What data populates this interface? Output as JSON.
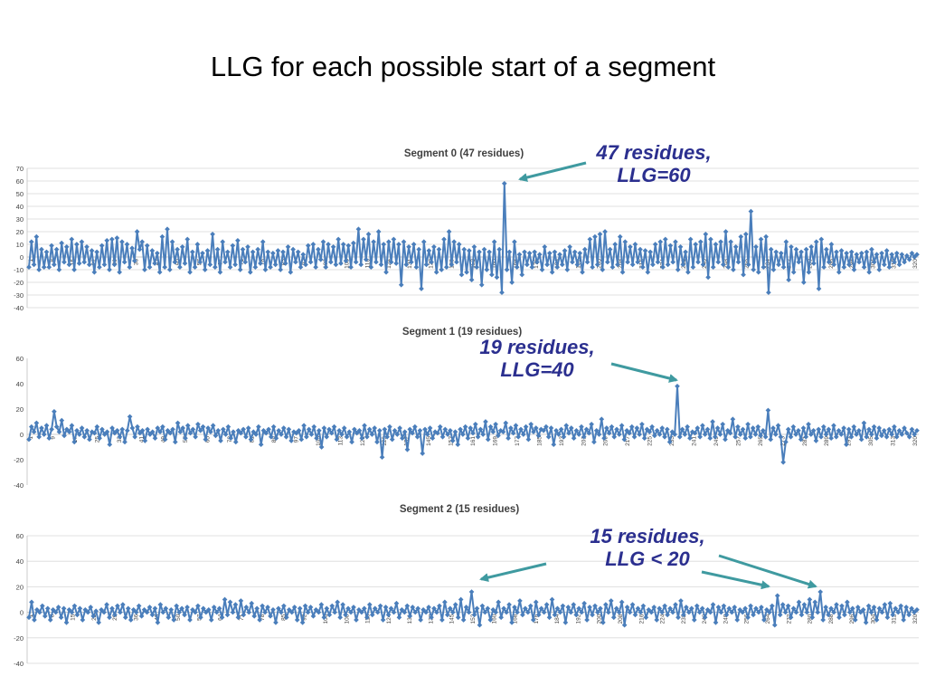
{
  "page_title": "LLG for each possible start of a segment",
  "colors": {
    "series": "#4a7ebb",
    "axis_text": "#444444",
    "grid": "#d9d9d9",
    "annotation_text": "#2b2f8f",
    "arrow": "#3f9aa0",
    "frame": "#9a9a9a"
  },
  "annotations": [
    {
      "line1": "47 residues,",
      "line2": "LLG=60"
    },
    {
      "line1": "19 residues,",
      "line2": "LLG=40"
    },
    {
      "line1": "15 residues,",
      "line2": "LLG < 20"
    }
  ],
  "chart_data": [
    {
      "type": "line",
      "title": "Segment 0 (47 residues)",
      "ylim": [
        -40,
        70
      ],
      "yticks": [
        -40,
        -30,
        -20,
        -10,
        0,
        10,
        20,
        30,
        40,
        50,
        60,
        70
      ],
      "grid": true,
      "xtick_labels": [
        "1",
        "8",
        "15",
        "22",
        "29",
        "36",
        "43",
        "50",
        "57",
        "64",
        "71",
        "78",
        "85",
        "92",
        "100",
        "108",
        "116",
        "124",
        "131",
        "138",
        "145",
        "152",
        "160",
        "168",
        "176",
        "184",
        "192",
        "200",
        "208",
        "216",
        "224",
        "232",
        "240",
        "248",
        "256",
        "264",
        "272",
        "280",
        "288",
        "296",
        "304",
        "312",
        "320"
      ],
      "peak": {
        "x": 171,
        "y": 60
      },
      "values": [
        -8,
        12,
        -6,
        16,
        -10,
        6,
        -8,
        4,
        -8,
        9,
        -6,
        6,
        -10,
        11,
        -4,
        8,
        -6,
        14,
        -10,
        10,
        -5,
        12,
        -4,
        8,
        -6,
        5,
        -12,
        4,
        -8,
        9,
        -6,
        13,
        -10,
        14,
        -6,
        15,
        -12,
        12,
        -4,
        10,
        -8,
        7,
        -3,
        20,
        6,
        12,
        -10,
        9,
        -8,
        5,
        -5,
        3,
        -12,
        16,
        -8,
        22,
        -10,
        12,
        -4,
        6,
        -8,
        8,
        -5,
        14,
        -12,
        4,
        -8,
        10,
        -4,
        3,
        -10,
        5,
        -6,
        18,
        -8,
        6,
        -12,
        12,
        -4,
        4,
        -8,
        9,
        -6,
        13,
        -10,
        6,
        -4,
        8,
        -12,
        4,
        -8,
        6,
        -5,
        12,
        -10,
        4,
        -8,
        3,
        -6,
        5,
        -10,
        4,
        -5,
        8,
        -12,
        6,
        -4,
        4,
        -8,
        2,
        -6,
        9,
        -4,
        10,
        -8,
        6,
        -2,
        12,
        -8,
        10,
        -4,
        8,
        -6,
        14,
        -5,
        10,
        -3,
        9,
        -8,
        11,
        -4,
        22,
        -6,
        14,
        -2,
        18,
        -8,
        12,
        -4,
        20,
        -6,
        10,
        -12,
        12,
        -4,
        14,
        -5,
        10,
        -22,
        12,
        -6,
        8,
        -4,
        10,
        -8,
        6,
        -25,
        12,
        -6,
        5,
        -4,
        8,
        -12,
        6,
        -10,
        14,
        -8,
        20,
        -6,
        12,
        -4,
        10,
        -14,
        6,
        -12,
        5,
        -18,
        8,
        -8,
        4,
        -22,
        6,
        -10,
        4,
        -14,
        12,
        -16,
        6,
        -28,
        58,
        -10,
        4,
        -20,
        12,
        -8,
        2,
        -14,
        4,
        -6,
        3,
        -8,
        4,
        -4,
        2,
        -10,
        8,
        -6,
        3,
        -12,
        4,
        -8,
        2,
        -6,
        5,
        -10,
        8,
        -4,
        4,
        -6,
        3,
        -12,
        6,
        -4,
        14,
        -8,
        16,
        -6,
        18,
        -10,
        20,
        -4,
        6,
        -8,
        10,
        -6,
        16,
        -12,
        12,
        -4,
        8,
        -6,
        10,
        -4,
        6,
        -8,
        5,
        -12,
        4,
        -6,
        10,
        -4,
        12,
        -8,
        14,
        -6,
        9,
        -4,
        12,
        -10,
        8,
        -6,
        4,
        -12,
        14,
        -8,
        10,
        -4,
        12,
        -6,
        18,
        -16,
        14,
        -8,
        10,
        -4,
        12,
        -6,
        20,
        -8,
        12,
        -10,
        8,
        -4,
        16,
        -14,
        18,
        -6,
        36,
        -10,
        8,
        -12,
        14,
        -8,
        16,
        -28,
        6,
        -10,
        4,
        -6,
        3,
        -8,
        12,
        -18,
        8,
        -12,
        6,
        -4,
        4,
        -20,
        6,
        -12,
        8,
        -5,
        12,
        -25,
        14,
        -8,
        6,
        -4,
        10,
        -6,
        4,
        -12,
        5,
        -8,
        3,
        -6,
        4,
        -10,
        2,
        -4,
        3,
        -8,
        4,
        -12,
        6,
        -4,
        2,
        -10,
        3,
        -6,
        5,
        -8,
        2,
        -4,
        3,
        -6,
        2,
        -4,
        1,
        -2,
        3,
        0,
        2
      ]
    },
    {
      "type": "line",
      "title": "Segment 1 (19 residues)",
      "ylim": [
        -40,
        60
      ],
      "yticks": [
        -40,
        -20,
        0,
        20,
        40,
        60
      ],
      "grid": false,
      "xtick_labels": [
        "1",
        "9",
        "17",
        "25",
        "33",
        "41",
        "49",
        "57",
        "65",
        "73",
        "81",
        "89",
        "97",
        "105",
        "113",
        "121",
        "129",
        "137",
        "145",
        "153",
        "161",
        "169",
        "177",
        "185",
        "193",
        "201",
        "209",
        "217",
        "225",
        "233",
        "241",
        "249",
        "257",
        "265",
        "273",
        "281",
        "289",
        "297",
        "305",
        "313",
        "320"
      ],
      "peak": {
        "x": 240,
        "y": 40
      },
      "values": [
        -4,
        6,
        2,
        9,
        -2,
        5,
        0,
        7,
        -3,
        4,
        18,
        6,
        2,
        11,
        -1,
        4,
        2,
        7,
        -6,
        3,
        0,
        5,
        -2,
        3,
        -4,
        2,
        1,
        6,
        -3,
        4,
        0,
        2,
        -8,
        5,
        1,
        3,
        -2,
        4,
        -6,
        3,
        14,
        5,
        -2,
        6,
        1,
        3,
        -5,
        4,
        0,
        2,
        -3,
        5,
        2,
        6,
        -4,
        3,
        1,
        4,
        -6,
        9,
        2,
        5,
        -3,
        7,
        1,
        4,
        -2,
        8,
        3,
        6,
        -4,
        5,
        2,
        7,
        -1,
        3,
        -5,
        4,
        0,
        6,
        -3,
        2,
        -6,
        3,
        1,
        4,
        -2,
        5,
        -4,
        2,
        0,
        6,
        -8,
        3,
        1,
        4,
        -2,
        6,
        -3,
        3,
        0,
        5,
        -2,
        4,
        -5,
        2,
        1,
        3,
        -4,
        7,
        -2,
        4,
        0,
        6,
        -3,
        3,
        -10,
        5,
        -2,
        4,
        1,
        6,
        -4,
        3,
        0,
        5,
        -2,
        2,
        -6,
        4,
        1,
        3,
        -3,
        7,
        -2,
        4,
        0,
        5,
        -6,
        3,
        -18,
        4,
        -2,
        6,
        -4,
        3,
        0,
        5,
        -3,
        2,
        -12,
        4,
        1,
        6,
        -2,
        3,
        -15,
        4,
        0,
        5,
        -3,
        2,
        1,
        6,
        -2,
        4,
        0,
        3,
        -5,
        2,
        -8,
        4,
        0,
        6,
        -3,
        5,
        1,
        8,
        -2,
        4,
        0,
        10,
        -4,
        6,
        2,
        8,
        -1,
        3,
        2,
        9,
        -3,
        5,
        1,
        7,
        -2,
        4,
        0,
        6,
        -4,
        8,
        2,
        5,
        -1,
        4,
        3,
        6,
        -2,
        5,
        -8,
        3,
        0,
        4,
        -2,
        7,
        1,
        5,
        -3,
        3,
        0,
        6,
        -2,
        4,
        1,
        8,
        -6,
        3,
        0,
        12,
        -3,
        5,
        1,
        6,
        -2,
        4,
        0,
        7,
        -4,
        3,
        1,
        6,
        -2,
        5,
        0,
        8,
        -3,
        4,
        2,
        6,
        -1,
        3,
        0,
        5,
        -2,
        4,
        -6,
        2,
        0,
        38,
        -2,
        4,
        0,
        6,
        -3,
        2,
        1,
        5,
        -2,
        7,
        0,
        4,
        -3,
        10,
        -2,
        5,
        0,
        8,
        -4,
        3,
        1,
        12,
        -2,
        6,
        0,
        4,
        -3,
        8,
        -2,
        5,
        0,
        6,
        -1,
        3,
        -2,
        19,
        -4,
        5,
        0,
        7,
        -2,
        -22,
        -6,
        4,
        -2,
        6,
        0,
        3,
        -4,
        5,
        -2,
        8,
        0,
        3,
        -5,
        4,
        -2,
        6,
        0,
        4,
        -3,
        7,
        -2,
        3,
        0,
        5,
        -8,
        4,
        -2,
        6,
        0,
        3,
        -4,
        9,
        -2,
        4,
        0,
        6,
        -3,
        5,
        -1,
        3,
        -2,
        4,
        0,
        6,
        -2,
        3,
        0,
        5,
        1,
        -2,
        4,
        0,
        3
      ]
    },
    {
      "type": "line",
      "title": "Segment 2 (15 residues)",
      "ylim": [
        -40,
        60
      ],
      "yticks": [
        -40,
        -20,
        0,
        20,
        40,
        60
      ],
      "grid": true,
      "xtick_labels": [
        "1",
        "8",
        "15",
        "22",
        "29",
        "36",
        "43",
        "50",
        "57",
        "64",
        "71",
        "78",
        "85",
        "92",
        "100",
        "108",
        "116",
        "124",
        "131",
        "138",
        "145",
        "152",
        "160",
        "168",
        "176",
        "184",
        "192",
        "200",
        "208",
        "216",
        "224",
        "232",
        "240",
        "248",
        "256",
        "264",
        "272",
        "280",
        "288",
        "296",
        "304",
        "312",
        "320"
      ],
      "peak": {
        "x": 288,
        "y": 16
      },
      "values": [
        -4,
        8,
        -6,
        2,
        0,
        5,
        -3,
        3,
        -6,
        2,
        0,
        4,
        -4,
        3,
        -8,
        2,
        0,
        5,
        -2,
        3,
        -6,
        2,
        0,
        4,
        -3,
        1,
        -8,
        2,
        0,
        6,
        -4,
        3,
        -2,
        5,
        0,
        6,
        -4,
        3,
        -6,
        2,
        0,
        5,
        -3,
        2,
        0,
        4,
        -2,
        3,
        -8,
        6,
        0,
        3,
        -4,
        2,
        -6,
        5,
        0,
        3,
        -2,
        4,
        -6,
        2,
        0,
        5,
        -4,
        3,
        0,
        2,
        -6,
        4,
        0,
        3,
        -4,
        10,
        -2,
        8,
        0,
        6,
        -4,
        9,
        -2,
        4,
        0,
        7,
        -3,
        3,
        -6,
        5,
        0,
        4,
        -3,
        2,
        -8,
        3,
        0,
        5,
        -4,
        2,
        0,
        4,
        -6,
        3,
        -8,
        5,
        0,
        4,
        -3,
        2,
        0,
        6,
        -4,
        3,
        -2,
        5,
        0,
        8,
        -4,
        6,
        -2,
        3,
        0,
        4,
        -6,
        2,
        0,
        3,
        -4,
        6,
        -2,
        3,
        0,
        5,
        -6,
        4,
        -2,
        3,
        0,
        7,
        -4,
        2,
        0,
        5,
        -3,
        4,
        0,
        3,
        -6,
        2,
        0,
        4,
        -4,
        3,
        0,
        5,
        -6,
        8,
        -2,
        3,
        0,
        6,
        -4,
        10,
        -6,
        4,
        0,
        16,
        -2,
        3,
        -10,
        5,
        0,
        3,
        -6,
        2,
        0,
        8,
        -4,
        3,
        0,
        6,
        -8,
        4,
        0,
        9,
        -2,
        3,
        0,
        5,
        -6,
        8,
        -2,
        3,
        0,
        6,
        -4,
        10,
        -2,
        3,
        0,
        5,
        -8,
        4,
        0,
        6,
        -2,
        3,
        0,
        7,
        -6,
        4,
        -2,
        5,
        0,
        3,
        -8,
        6,
        0,
        9,
        -4,
        3,
        0,
        8,
        -10,
        4,
        0,
        6,
        -2,
        3,
        0,
        5,
        -4,
        2,
        0,
        4,
        -6,
        3,
        0,
        5,
        -2,
        3,
        0,
        6,
        -4,
        9,
        -2,
        4,
        0,
        3,
        -6,
        5,
        0,
        3,
        -4,
        2,
        0,
        6,
        -8,
        4,
        0,
        5,
        -2,
        3,
        0,
        4,
        -6,
        2,
        0,
        3,
        -4,
        5,
        -2,
        3,
        0,
        4,
        -6,
        2,
        0,
        5,
        -10,
        13,
        -2,
        6,
        0,
        5,
        -4,
        3,
        0,
        8,
        -2,
        6,
        0,
        10,
        -4,
        8,
        0,
        16,
        -6,
        4,
        -2,
        3,
        0,
        6,
        -4,
        5,
        -2,
        8,
        0,
        3,
        -6,
        4,
        0,
        2,
        -8,
        5,
        0,
        4,
        -6,
        3,
        0,
        6,
        -4,
        7,
        -2,
        3,
        0,
        5,
        -6,
        4,
        -2,
        3,
        0,
        2
      ]
    }
  ]
}
